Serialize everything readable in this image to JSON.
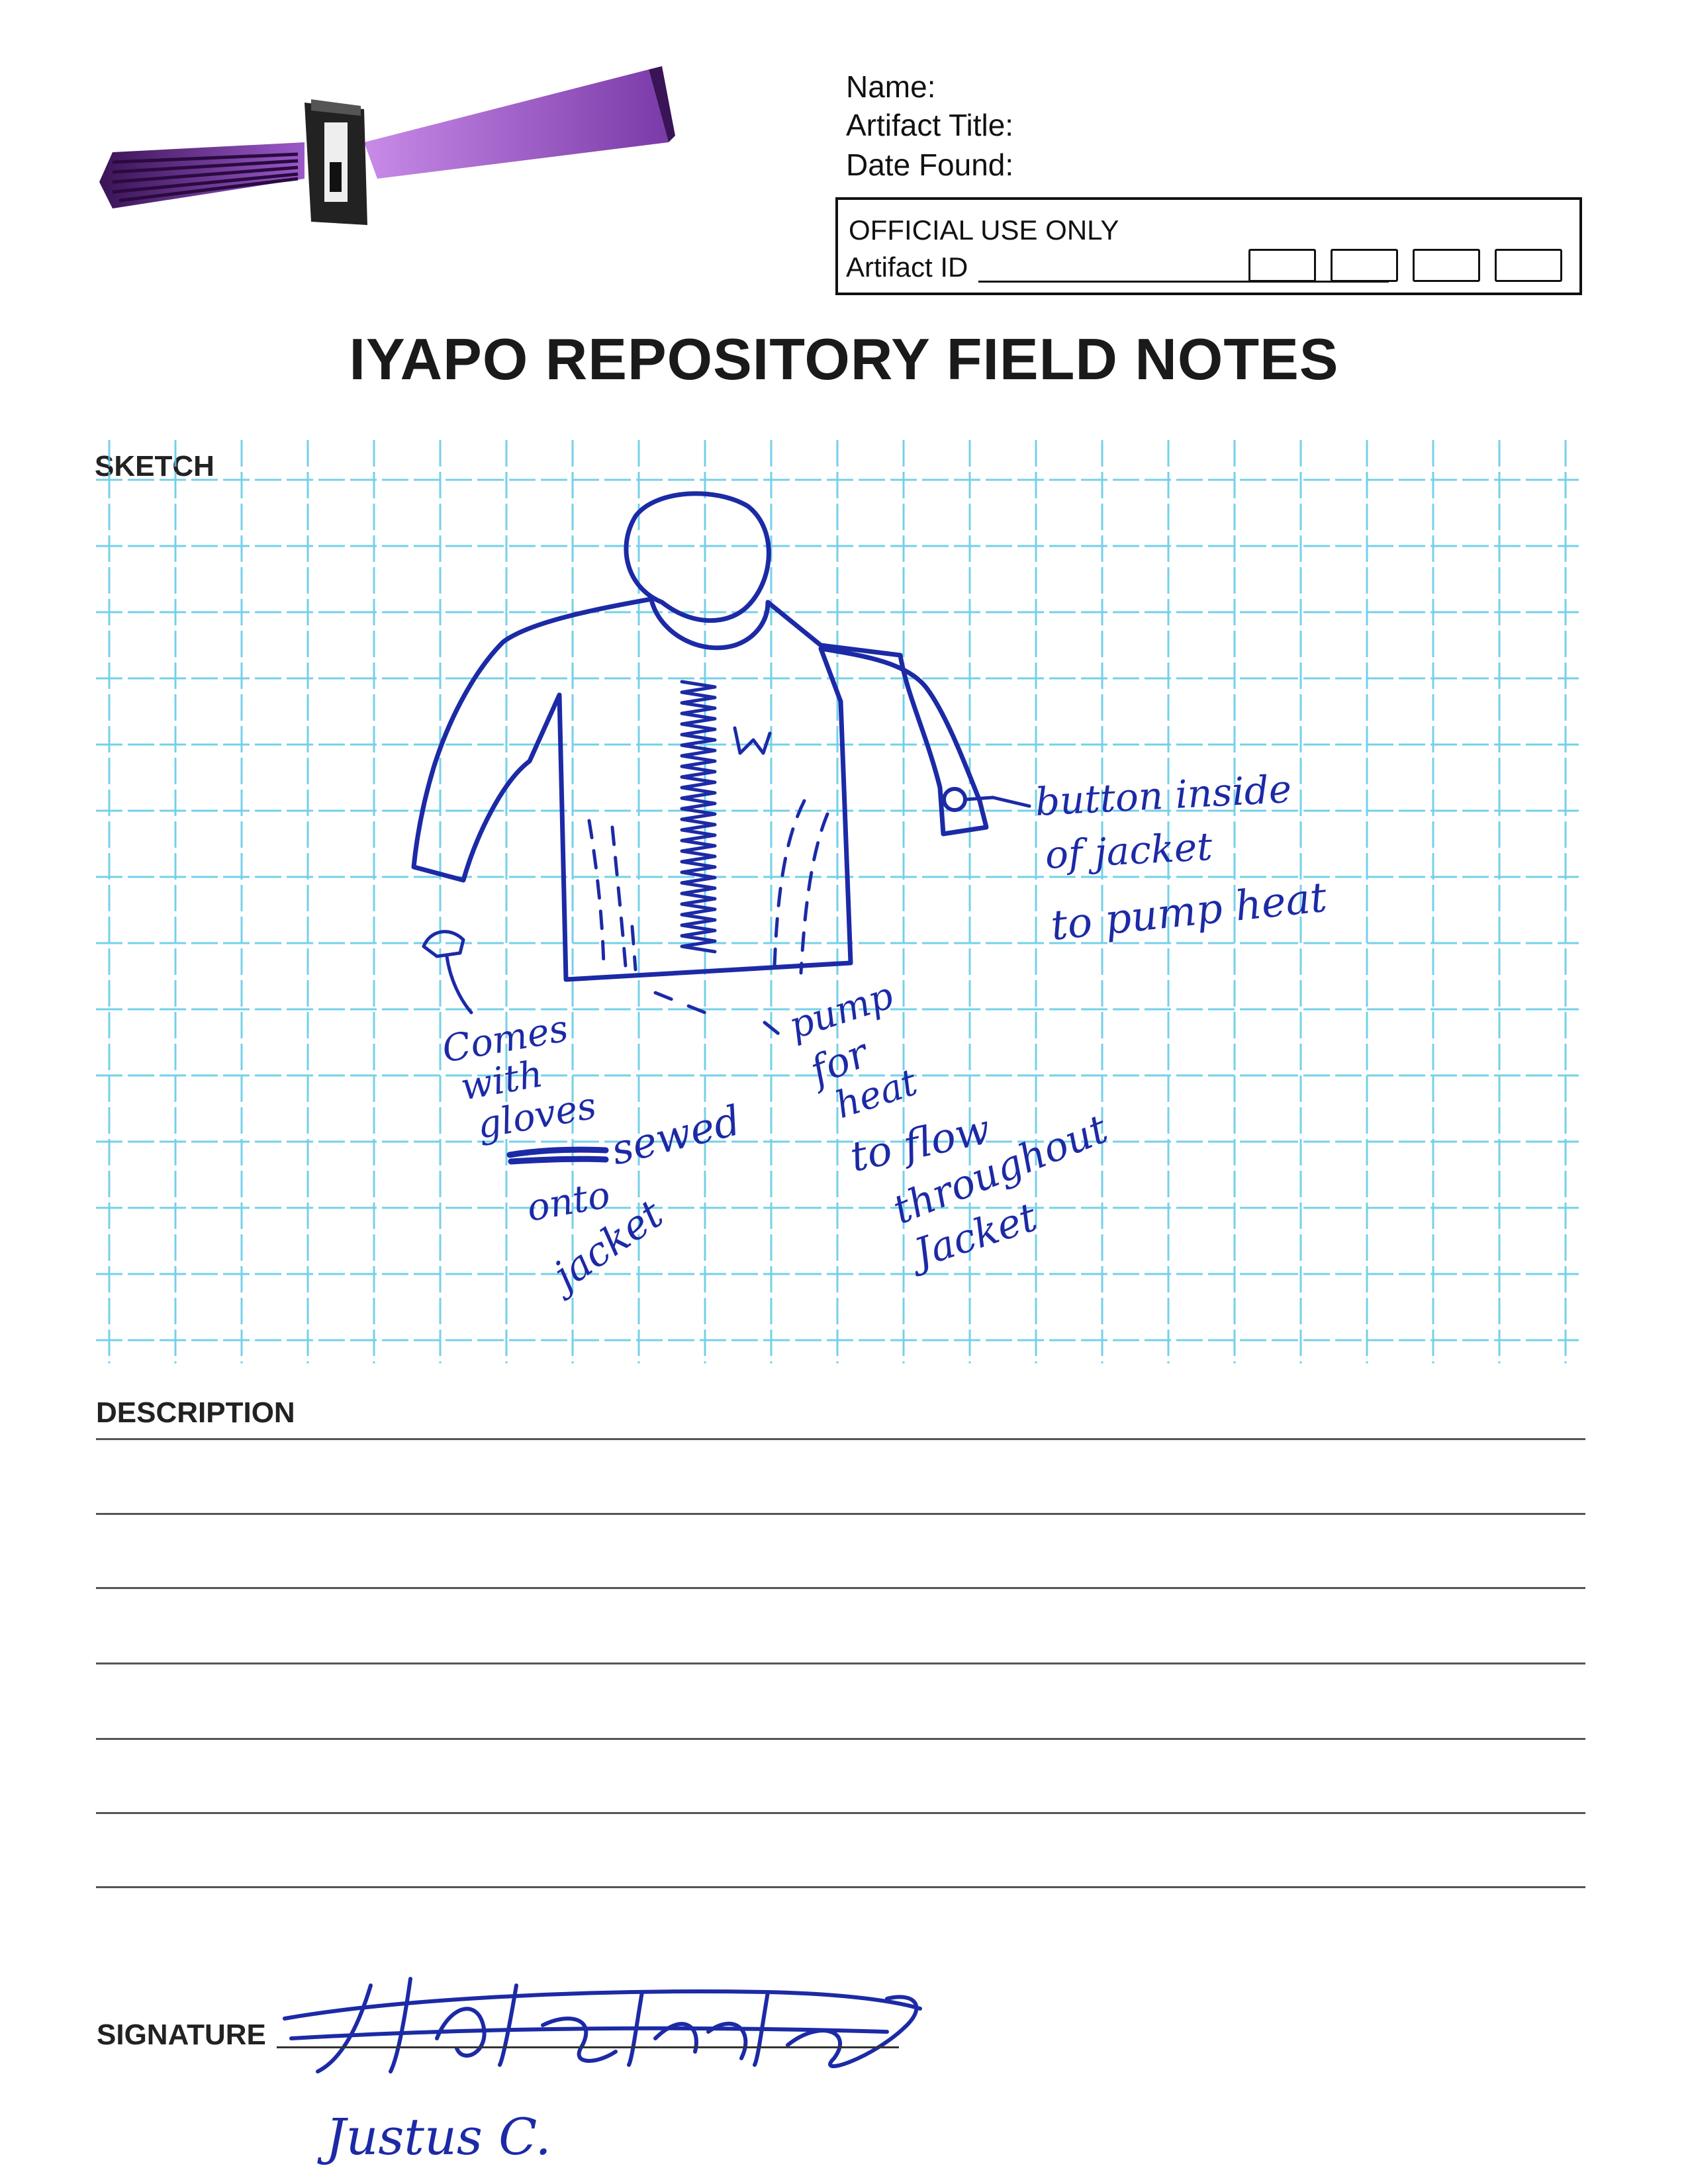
{
  "header": {
    "name_label": "Name:",
    "artifact_title_label": "Artifact Title:",
    "date_found_label": "Date Found:"
  },
  "official": {
    "title": "OFFICIAL USE ONLY",
    "artifact_id_label": "Artifact ID"
  },
  "title": "IYAPO REPOSITORY FIELD NOTES",
  "sketch": {
    "label": "SKETCH",
    "annotations": {
      "button": [
        "button inside",
        "of jacket",
        "to pump heat"
      ],
      "gloves": [
        "Comes",
        "with",
        "gloves",
        "sewed",
        "onto",
        "jacket"
      ],
      "pump": [
        "pump",
        "for",
        "heat",
        "to flow",
        "throughout",
        "Jacket"
      ]
    }
  },
  "description": {
    "label": "DESCRIPTION"
  },
  "signature": {
    "label": "SIGNATURE",
    "printed_name": "Justus C."
  },
  "colors": {
    "ink": "#1c2aa6",
    "grid": "#5cc8e6",
    "logo_purple": "#9b59c9"
  }
}
